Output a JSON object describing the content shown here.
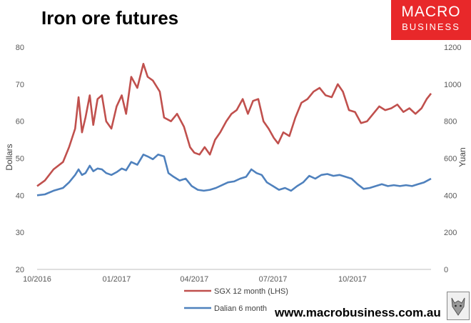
{
  "header": {
    "title": "Iron ore futures"
  },
  "logo": {
    "line1": "MACRO",
    "line2": "BUSINESS",
    "color": "#e8282a"
  },
  "footer": {
    "url": "www.macrobusiness.com.au",
    "icon": "wolf-icon"
  },
  "chart_data": {
    "type": "line",
    "title": "Iron ore futures",
    "ylabel": "Dollars",
    "y2label": "Yuan",
    "ylim": [
      20,
      80
    ],
    "y2lim": [
      0,
      1200
    ],
    "yticks": [
      "80",
      "70",
      "60",
      "50",
      "40",
      "30",
      "20"
    ],
    "y2ticks": [
      "1200",
      "1000",
      "800",
      "600",
      "400",
      "200",
      "0"
    ],
    "xlim": [
      "2016-10-01",
      "2017-12-31"
    ],
    "xticks": [
      "10/2016",
      "01/2017",
      "04/2017",
      "07/2017",
      "10/2017"
    ],
    "grid": false,
    "legend_position": "bottom",
    "series": [
      {
        "name": "SGX 12 month (LHS)",
        "axis": "left",
        "color": "#c0504d",
        "points": [
          [
            "2016-10-01",
            42.5
          ],
          [
            "2016-10-10",
            44
          ],
          [
            "2016-10-20",
            47
          ],
          [
            "2016-10-31",
            49
          ],
          [
            "2016-11-07",
            53
          ],
          [
            "2016-11-14",
            58
          ],
          [
            "2016-11-18",
            66.5
          ],
          [
            "2016-11-22",
            57
          ],
          [
            "2016-11-26",
            61
          ],
          [
            "2016-12-01",
            67
          ],
          [
            "2016-12-05",
            59
          ],
          [
            "2016-12-10",
            66
          ],
          [
            "2016-12-15",
            67
          ],
          [
            "2016-12-20",
            60
          ],
          [
            "2016-12-26",
            58
          ],
          [
            "2017-01-01",
            64
          ],
          [
            "2017-01-07",
            67
          ],
          [
            "2017-01-12",
            62
          ],
          [
            "2017-01-18",
            72
          ],
          [
            "2017-01-25",
            69
          ],
          [
            "2017-02-01",
            75.5
          ],
          [
            "2017-02-06",
            72
          ],
          [
            "2017-02-12",
            71
          ],
          [
            "2017-02-20",
            68
          ],
          [
            "2017-02-25",
            61
          ],
          [
            "2017-03-05",
            60
          ],
          [
            "2017-03-12",
            62
          ],
          [
            "2017-03-20",
            58.5
          ],
          [
            "2017-03-27",
            53
          ],
          [
            "2017-04-01",
            51.5
          ],
          [
            "2017-04-07",
            51
          ],
          [
            "2017-04-13",
            53
          ],
          [
            "2017-04-19",
            51
          ],
          [
            "2017-04-25",
            55
          ],
          [
            "2017-05-01",
            57
          ],
          [
            "2017-05-08",
            60
          ],
          [
            "2017-05-14",
            62
          ],
          [
            "2017-05-20",
            63
          ],
          [
            "2017-05-27",
            66
          ],
          [
            "2017-06-02",
            62
          ],
          [
            "2017-06-08",
            65.5
          ],
          [
            "2017-06-14",
            66
          ],
          [
            "2017-06-20",
            60
          ],
          [
            "2017-06-26",
            58
          ],
          [
            "2017-07-02",
            55.5
          ],
          [
            "2017-07-07",
            54
          ],
          [
            "2017-07-13",
            57
          ],
          [
            "2017-07-20",
            56
          ],
          [
            "2017-07-27",
            61
          ],
          [
            "2017-08-03",
            65
          ],
          [
            "2017-08-10",
            66
          ],
          [
            "2017-08-17",
            68
          ],
          [
            "2017-08-24",
            69
          ],
          [
            "2017-08-31",
            67
          ],
          [
            "2017-09-07",
            66.5
          ],
          [
            "2017-09-14",
            70
          ],
          [
            "2017-09-20",
            68
          ],
          [
            "2017-09-27",
            63
          ],
          [
            "2017-10-04",
            62.5
          ],
          [
            "2017-10-11",
            59.5
          ],
          [
            "2017-10-18",
            60
          ],
          [
            "2017-10-25",
            62
          ],
          [
            "2017-11-01",
            64
          ],
          [
            "2017-11-08",
            63
          ],
          [
            "2017-11-15",
            63.5
          ],
          [
            "2017-11-22",
            64.5
          ],
          [
            "2017-11-29",
            62.5
          ],
          [
            "2017-12-06",
            63.5
          ],
          [
            "2017-12-13",
            62
          ],
          [
            "2017-12-20",
            63.5
          ],
          [
            "2017-12-26",
            66
          ],
          [
            "2017-12-31",
            67.5
          ]
        ]
      },
      {
        "name": "Dalian 6 month",
        "axis": "right",
        "color": "#4f81bd",
        "points": [
          [
            "2016-10-01",
            400
          ],
          [
            "2016-10-10",
            405
          ],
          [
            "2016-10-20",
            425
          ],
          [
            "2016-10-31",
            440
          ],
          [
            "2016-11-07",
            470
          ],
          [
            "2016-11-14",
            510
          ],
          [
            "2016-11-18",
            540
          ],
          [
            "2016-11-22",
            510
          ],
          [
            "2016-11-26",
            520
          ],
          [
            "2016-12-01",
            560
          ],
          [
            "2016-12-05",
            530
          ],
          [
            "2016-12-10",
            545
          ],
          [
            "2016-12-15",
            540
          ],
          [
            "2016-12-20",
            520
          ],
          [
            "2016-12-26",
            510
          ],
          [
            "2017-01-01",
            525
          ],
          [
            "2017-01-07",
            545
          ],
          [
            "2017-01-12",
            535
          ],
          [
            "2017-01-18",
            580
          ],
          [
            "2017-01-25",
            565
          ],
          [
            "2017-02-01",
            620
          ],
          [
            "2017-02-06",
            610
          ],
          [
            "2017-02-12",
            595
          ],
          [
            "2017-02-18",
            620
          ],
          [
            "2017-02-25",
            610
          ],
          [
            "2017-03-02",
            520
          ],
          [
            "2017-03-08",
            500
          ],
          [
            "2017-03-15",
            480
          ],
          [
            "2017-03-22",
            490
          ],
          [
            "2017-03-29",
            450
          ],
          [
            "2017-04-05",
            430
          ],
          [
            "2017-04-12",
            425
          ],
          [
            "2017-04-19",
            430
          ],
          [
            "2017-04-26",
            440
          ],
          [
            "2017-05-03",
            455
          ],
          [
            "2017-05-10",
            470
          ],
          [
            "2017-05-17",
            475
          ],
          [
            "2017-05-24",
            490
          ],
          [
            "2017-05-31",
            500
          ],
          [
            "2017-06-06",
            540
          ],
          [
            "2017-06-12",
            520
          ],
          [
            "2017-06-18",
            510
          ],
          [
            "2017-06-24",
            470
          ],
          [
            "2017-07-01",
            450
          ],
          [
            "2017-07-08",
            430
          ],
          [
            "2017-07-15",
            440
          ],
          [
            "2017-07-22",
            425
          ],
          [
            "2017-07-29",
            450
          ],
          [
            "2017-08-05",
            470
          ],
          [
            "2017-08-12",
            505
          ],
          [
            "2017-08-19",
            490
          ],
          [
            "2017-08-26",
            510
          ],
          [
            "2017-09-02",
            515
          ],
          [
            "2017-09-09",
            505
          ],
          [
            "2017-09-16",
            510
          ],
          [
            "2017-09-23",
            500
          ],
          [
            "2017-09-30",
            490
          ],
          [
            "2017-10-07",
            460
          ],
          [
            "2017-10-14",
            435
          ],
          [
            "2017-10-21",
            440
          ],
          [
            "2017-10-28",
            450
          ],
          [
            "2017-11-04",
            460
          ],
          [
            "2017-11-11",
            450
          ],
          [
            "2017-11-18",
            455
          ],
          [
            "2017-11-25",
            450
          ],
          [
            "2017-12-02",
            455
          ],
          [
            "2017-12-09",
            450
          ],
          [
            "2017-12-16",
            460
          ],
          [
            "2017-12-23",
            470
          ],
          [
            "2017-12-31",
            490
          ]
        ]
      }
    ]
  }
}
